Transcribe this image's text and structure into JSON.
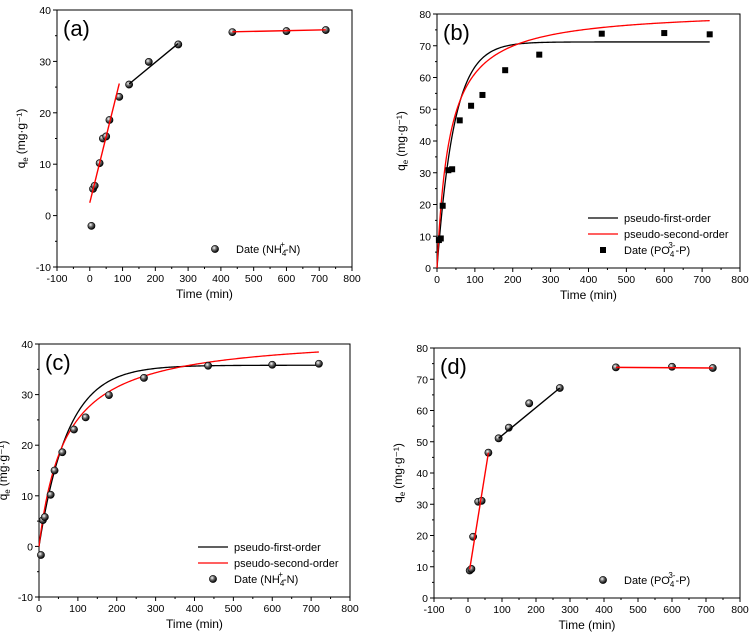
{
  "chart_data": [
    {
      "id": "a",
      "type": "scatter",
      "panel_label": "(a)",
      "xlabel": "Time (min)",
      "ylabel_main": "q",
      "ylabel_sub": "e",
      "ylabel_unit": "(mg·g⁻¹)",
      "xlim": [
        -100,
        800
      ],
      "ylim": [
        -10,
        40
      ],
      "xticks": [
        -100,
        0,
        100,
        200,
        300,
        400,
        500,
        600,
        700,
        800
      ],
      "yticks": [
        -10,
        0,
        10,
        20,
        30,
        40
      ],
      "legend_position": "bottom-right",
      "series": [
        {
          "name": "Date (NH4+-N)",
          "label_parts": [
            "Date (NH",
            "4",
            "+",
            "-N)"
          ],
          "kind": "points",
          "marker": "ball",
          "color": "#000000",
          "x": [
            5,
            10,
            15,
            30,
            40,
            50,
            60,
            90,
            120,
            180,
            270,
            435,
            600,
            720
          ],
          "y": [
            -2,
            5.2,
            5.8,
            10.2,
            15,
            15.4,
            18.6,
            23.1,
            25.5,
            29.9,
            33.3,
            35.7,
            35.9,
            36.1
          ]
        },
        {
          "name": "fit-1",
          "kind": "line",
          "color": "#ff0000",
          "x": [
            0,
            90
          ],
          "y": [
            2.5,
            25.7
          ]
        },
        {
          "name": "fit-2",
          "kind": "line",
          "color": "#000000",
          "x": [
            120,
            270
          ],
          "y": [
            25.6,
            33.5
          ]
        },
        {
          "name": "fit-3",
          "kind": "line",
          "color": "#ff0000",
          "x": [
            435,
            720
          ],
          "y": [
            35.75,
            36.15
          ]
        }
      ]
    },
    {
      "id": "b",
      "type": "scatter",
      "panel_label": "(b)",
      "xlabel": "Time (min)",
      "ylabel_main": "q",
      "ylabel_sub": "e",
      "ylabel_unit": "(mg·g⁻¹)",
      "xlim": [
        0,
        800
      ],
      "ylim": [
        0,
        80
      ],
      "xticks": [
        0,
        100,
        200,
        300,
        400,
        500,
        600,
        700,
        800
      ],
      "yticks": [
        0,
        10,
        20,
        30,
        40,
        50,
        60,
        70,
        80
      ],
      "legend_position": "bottom-right",
      "series": [
        {
          "name": "pseudo-first-order",
          "label_parts": [
            "pseudo-first-order"
          ],
          "kind": "curve",
          "model": "pfo",
          "qe": 71.2,
          "k": 0.022,
          "xmax": 720,
          "color": "#000000"
        },
        {
          "name": "pseudo-second-order",
          "label_parts": [
            "pseudo-second-order"
          ],
          "kind": "curve",
          "model": "pso",
          "qe": 81.5,
          "k": 0.00037,
          "xmax": 720,
          "color": "#ff0000"
        },
        {
          "name": "Date (PO43--P)",
          "label_parts": [
            "Date (PO",
            "4",
            "3-",
            "-P)"
          ],
          "kind": "points",
          "marker": "square",
          "color": "#000000",
          "x": [
            5,
            10,
            15,
            30,
            40,
            60,
            90,
            120,
            180,
            270,
            435,
            600,
            720
          ],
          "y": [
            8.8,
            9.3,
            19.6,
            30.8,
            31.1,
            46.5,
            51.1,
            54.5,
            62.3,
            67.2,
            73.8,
            74,
            73.6
          ]
        }
      ]
    },
    {
      "id": "c",
      "type": "scatter",
      "panel_label": "(c)",
      "xlabel": "Time (min)",
      "ylabel_main": "q",
      "ylabel_sub": "e",
      "ylabel_unit": "(mg·g⁻¹)",
      "xlim": [
        0,
        800
      ],
      "ylim": [
        -10,
        40
      ],
      "xticks": [
        0,
        100,
        200,
        300,
        400,
        500,
        600,
        700,
        800
      ],
      "yticks": [
        -10,
        0,
        10,
        20,
        30,
        40
      ],
      "legend_position": "bottom-right",
      "series": [
        {
          "name": "pseudo-first-order",
          "label_parts": [
            "pseudo-first-order"
          ],
          "kind": "curve",
          "model": "pfo",
          "qe": 35.8,
          "k": 0.0135,
          "xmax": 720,
          "color": "#000000"
        },
        {
          "name": "pseudo-second-order",
          "label_parts": [
            "pseudo-second-order"
          ],
          "kind": "curve",
          "model": "pso",
          "qe": 42,
          "k": 0.000355,
          "xmax": 720,
          "color": "#ff0000"
        },
        {
          "name": "Date (NH4+-N)",
          "label_parts": [
            "Date (NH",
            "4",
            "+",
            "-N)"
          ],
          "kind": "points",
          "marker": "ball",
          "color": "#000000",
          "x": [
            5,
            10,
            15,
            30,
            40,
            60,
            90,
            120,
            180,
            270,
            435,
            600,
            720
          ],
          "y": [
            -1.7,
            5.2,
            5.8,
            10.2,
            15,
            18.6,
            23.1,
            25.5,
            29.9,
            33.3,
            35.7,
            35.9,
            36.1
          ]
        }
      ]
    },
    {
      "id": "d",
      "type": "scatter",
      "panel_label": "(d)",
      "xlabel": "Time (min)",
      "ylabel_main": "q",
      "ylabel_sub": "e",
      "ylabel_unit": "(mg·g⁻¹)",
      "xlim": [
        -100,
        800
      ],
      "ylim": [
        0,
        80
      ],
      "xticks": [
        -100,
        0,
        100,
        200,
        300,
        400,
        500,
        600,
        700,
        800
      ],
      "yticks": [
        0,
        10,
        20,
        30,
        40,
        50,
        60,
        70,
        80
      ],
      "legend_position": "bottom-right",
      "series": [
        {
          "name": "Date (PO43--P)",
          "label_parts": [
            "Date (PO",
            "4",
            "3-",
            "-P)"
          ],
          "kind": "points",
          "marker": "ball",
          "color": "#000000",
          "x": [
            5,
            10,
            15,
            30,
            40,
            60,
            90,
            120,
            180,
            270,
            435,
            600,
            720
          ],
          "y": [
            8.8,
            9.3,
            19.6,
            30.8,
            31.1,
            46.5,
            51.1,
            54.5,
            62.3,
            67.2,
            73.8,
            74,
            73.6
          ]
        },
        {
          "name": "fit-1",
          "kind": "line",
          "color": "#ff0000",
          "x": [
            5,
            60
          ],
          "y": [
            9.2,
            46.5
          ]
        },
        {
          "name": "fit-2",
          "kind": "line",
          "color": "#000000",
          "x": [
            90,
            270
          ],
          "y": [
            51.1,
            67.2
          ]
        },
        {
          "name": "fit-3",
          "kind": "line",
          "color": "#ff0000",
          "x": [
            435,
            720
          ],
          "y": [
            73.8,
            73.6
          ]
        }
      ]
    }
  ]
}
